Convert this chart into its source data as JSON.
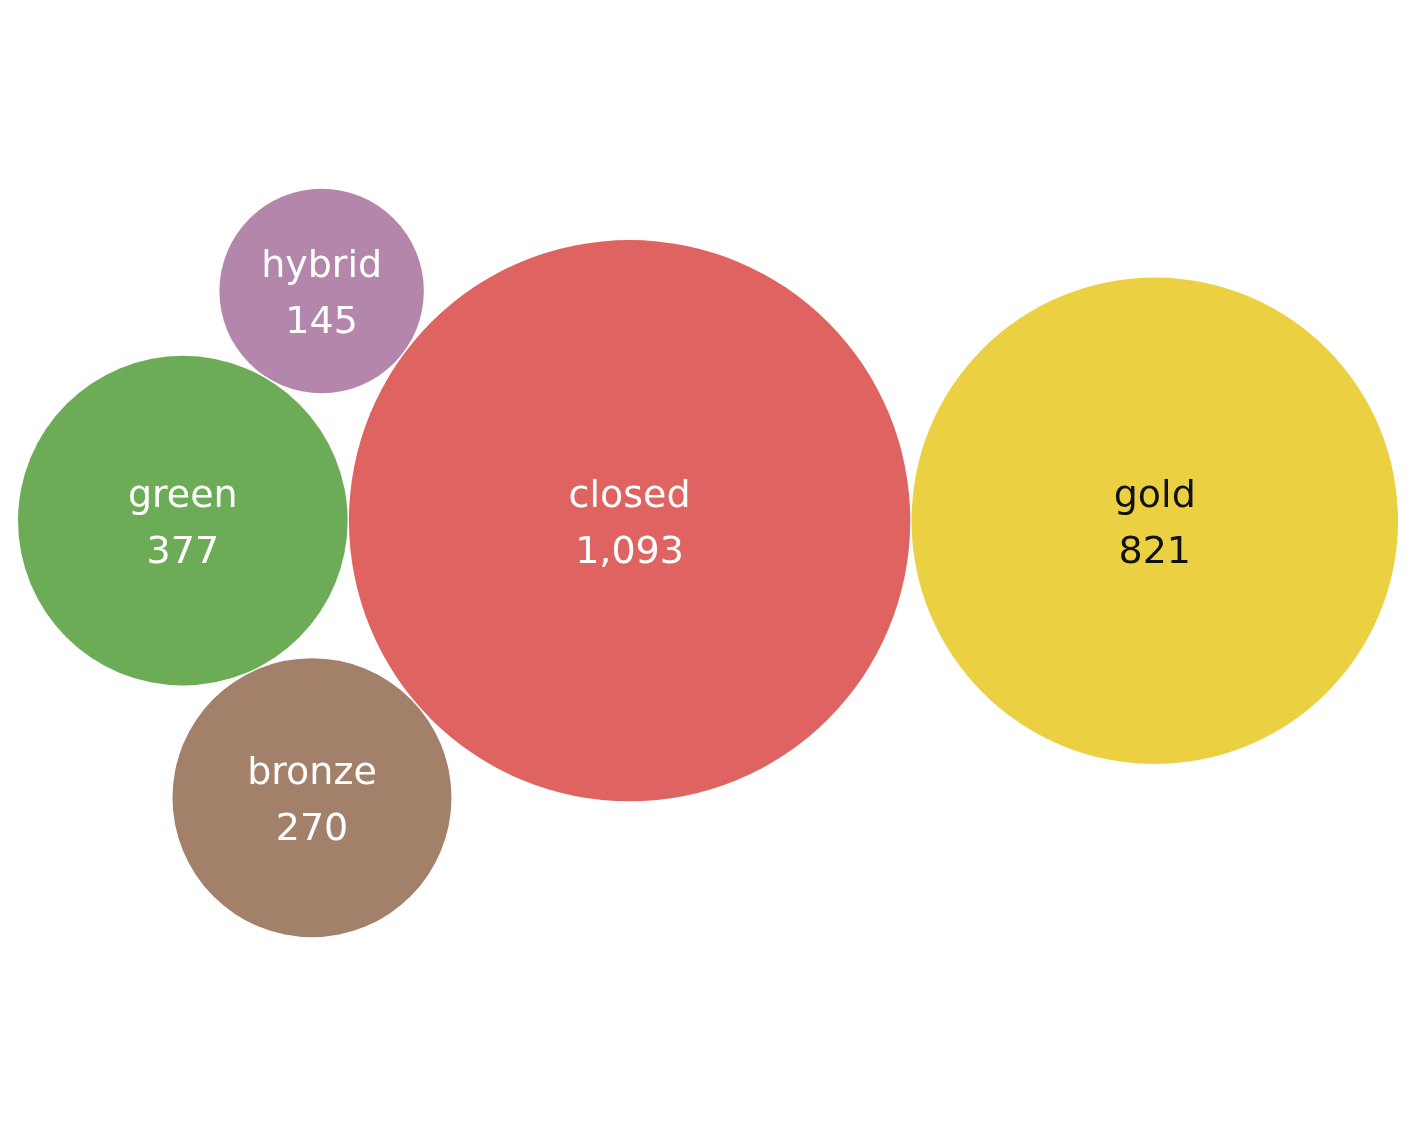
{
  "chart_data": {
    "type": "other",
    "categories": [
      "closed",
      "gold",
      "green",
      "bronze",
      "hybrid"
    ],
    "values": [
      1093,
      821,
      377,
      270,
      145
    ],
    "colors": [
      "#df6361",
      "#ebd042",
      "#6dac57",
      "#a3806a",
      "#b486ab"
    ],
    "value_labels": [
      "1,093",
      "821",
      "377",
      "270",
      "145"
    ]
  }
}
